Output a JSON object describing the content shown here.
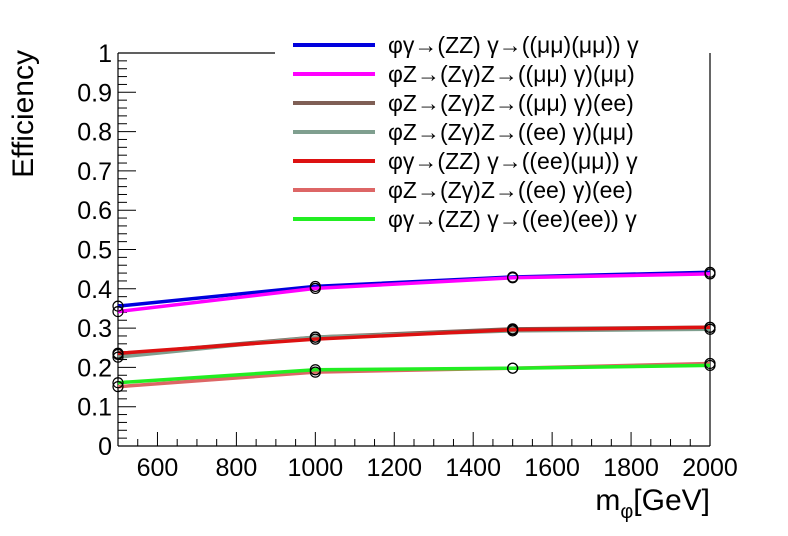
{
  "chart_data": {
    "type": "line",
    "title": "",
    "xlabel": "m",
    "xlabel_subscript": "φ",
    "xlabel_suffix": "[GeV]",
    "ylabel": "Efficiency",
    "xlim": [
      500,
      2000
    ],
    "ylim": [
      0,
      1
    ],
    "grid": false,
    "legend_position": "top-right",
    "x": [
      500,
      1000,
      1500,
      2000
    ],
    "x_ticks": [
      600,
      800,
      1000,
      1200,
      1400,
      1600,
      1800,
      2000
    ],
    "y_ticks": [
      0,
      0.1,
      0.2,
      0.3,
      0.4,
      0.5,
      0.6,
      0.7,
      0.8,
      0.9,
      1
    ],
    "series": [
      {
        "name": "φγ→(ZZ) γ→((μμ)(μμ)) γ",
        "color": "#0000dd",
        "values": [
          0.356,
          0.406,
          0.43,
          0.442
        ]
      },
      {
        "name": "φZ→(Zγ)Z→((μμ) γ)(μμ)",
        "color": "#ff00ff",
        "values": [
          0.342,
          0.401,
          0.428,
          0.438
        ]
      },
      {
        "name": "φZ→(Zγ)Z→((μμ) γ)(ee)",
        "color": "#7f5f55",
        "values": [
          0.233,
          0.277,
          0.298,
          0.302
        ]
      },
      {
        "name": "φZ→(Zγ)Z→((ee) γ)(μμ)",
        "color": "#7f9f8f",
        "values": [
          0.226,
          0.277,
          0.293,
          0.297
        ]
      },
      {
        "name": "φγ→(ZZ) γ→((ee)(μμ)) γ",
        "color": "#dd1111",
        "values": [
          0.236,
          0.272,
          0.296,
          0.302
        ]
      },
      {
        "name": "φZ→(Zγ)Z→((ee) γ)(ee)",
        "color": "#dd6666",
        "values": [
          0.151,
          0.188,
          0.198,
          0.21
        ]
      },
      {
        "name": "φγ→(ZZ) γ→((ee)(ee)) γ",
        "color": "#22ee22",
        "values": [
          0.161,
          0.194,
          0.198,
          0.205
        ]
      }
    ]
  }
}
